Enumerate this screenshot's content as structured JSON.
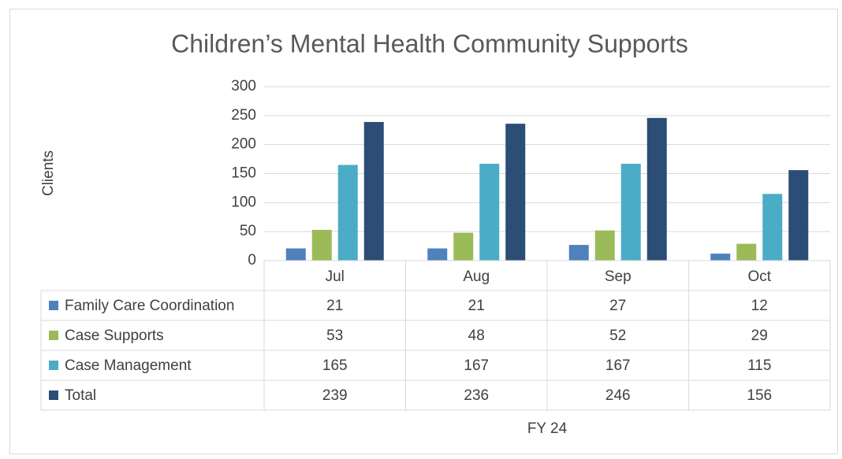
{
  "chart_data": {
    "type": "bar",
    "title": "Children’s Mental Health Community Supports",
    "y_label": "Clients",
    "x_label": "FY 24",
    "categories": [
      "Jul",
      "Aug",
      "Sep",
      "Oct"
    ],
    "series": [
      {
        "name": "Family Care Coordination",
        "color": "#4f81bd",
        "values": [
          21,
          21,
          27,
          12
        ]
      },
      {
        "name": "Case Supports",
        "color": "#9bbb59",
        "values": [
          53,
          48,
          52,
          29
        ]
      },
      {
        "name": "Case Management",
        "color": "#4bacc6",
        "values": [
          165,
          167,
          167,
          115
        ]
      },
      {
        "name": "Total",
        "color": "#2c4d75",
        "values": [
          239,
          236,
          246,
          156
        ]
      }
    ],
    "ylim": [
      0,
      300
    ],
    "yticks": [
      0,
      50,
      100,
      150,
      200,
      250,
      300
    ],
    "grid": true,
    "data_table": true
  }
}
